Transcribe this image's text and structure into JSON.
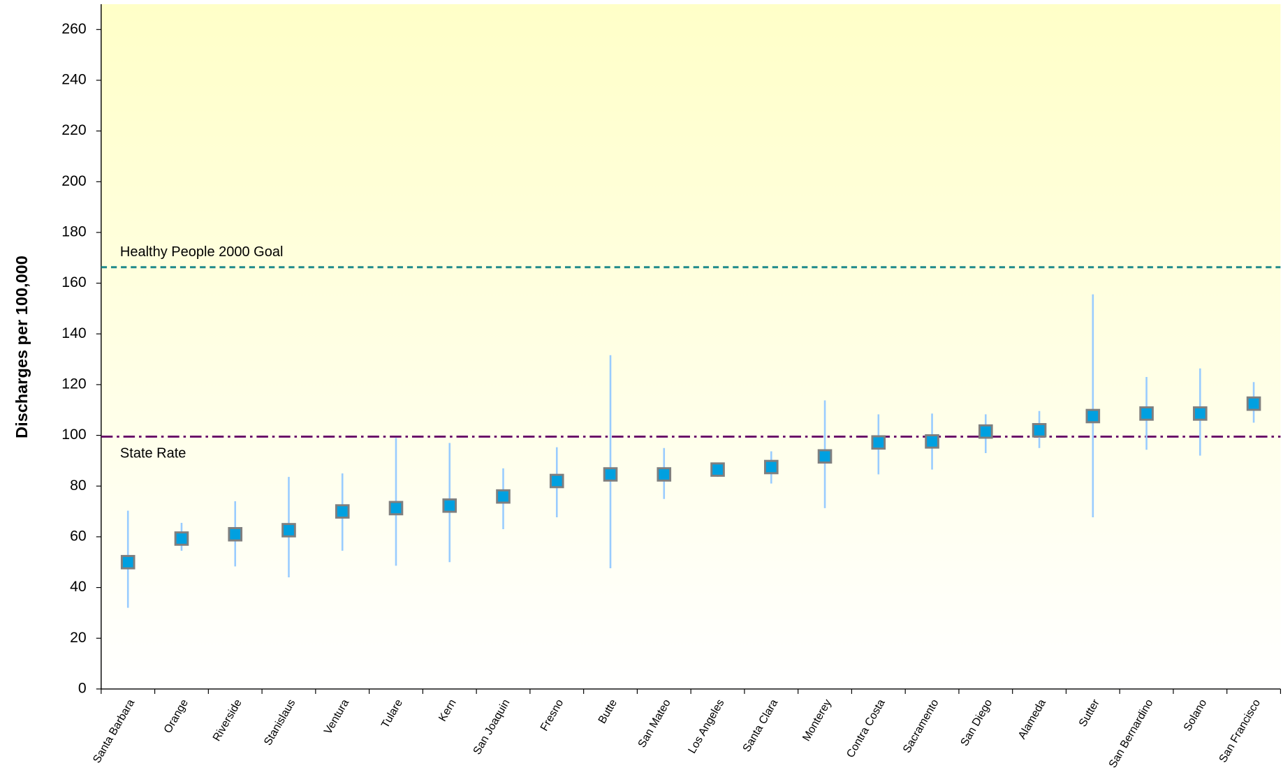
{
  "chart_data": {
    "type": "errorbar",
    "y_label": "Discharges per 100,000",
    "ylim": [
      0,
      270
    ],
    "yticks": [
      0,
      20,
      40,
      60,
      80,
      100,
      120,
      140,
      160,
      180,
      200,
      220,
      240,
      260
    ],
    "categories": [
      "Santa Barbara",
      "Orange",
      "Riverside",
      "Stanislaus",
      "Ventura",
      "Tulare",
      "Kern",
      "San Joaquin",
      "Fresno",
      "Butte",
      "San Mateo",
      "Los Angeles",
      "Santa Clara",
      "Monterey",
      "Contra Costa",
      "Sacramento",
      "San Diego",
      "Alameda",
      "Sutter",
      "San Bernardino",
      "Solano",
      "San Francisco"
    ],
    "series": [
      {
        "color": "#00a0e0",
        "error_color": "#99ccff",
        "values": [
          50,
          59.3,
          61,
          62.6,
          70,
          71.3,
          72.3,
          75.9,
          82,
          84.6,
          84.6,
          86.5,
          87.5,
          91.7,
          97.2,
          97.6,
          101.5,
          102,
          107.6,
          108.6,
          108.6,
          112.5
        ],
        "lower": [
          32,
          54.5,
          48.3,
          44,
          54.5,
          48.6,
          50,
          63,
          67.7,
          47.6,
          74.9,
          83.6,
          81,
          71.3,
          84.6,
          86.5,
          93,
          95,
          67.7,
          94.3,
          92,
          105
        ],
        "upper": [
          70.3,
          65.5,
          74,
          83.6,
          85,
          99,
          97,
          87,
          95.3,
          131.6,
          95,
          88,
          93.7,
          113.8,
          108.3,
          108.6,
          108.3,
          109.6,
          155.6,
          123,
          126.4,
          121
        ]
      }
    ],
    "reference_lines": [
      {
        "label": "Healthy People 2000 Goal",
        "value": 166.3,
        "color": "#1f8a8a",
        "style": "dashed",
        "label_position": "above"
      },
      {
        "label": "State Rate",
        "value": 99.5,
        "color": "#660066",
        "style": "dashdot",
        "label_position": "below"
      }
    ]
  }
}
